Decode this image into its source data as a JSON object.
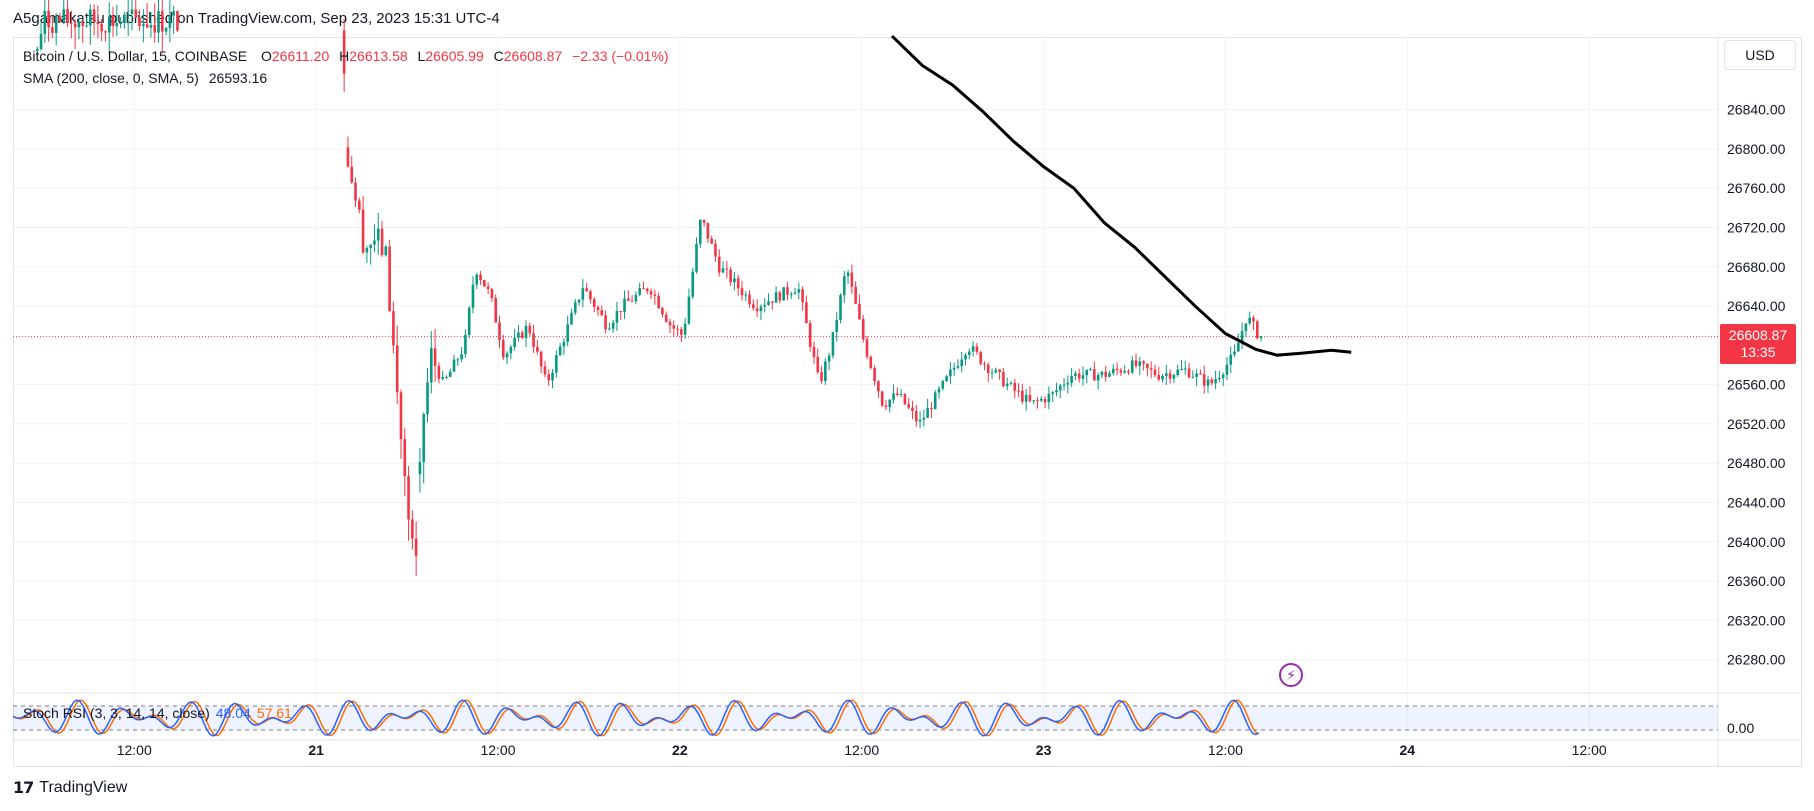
{
  "publisher_line": "A5gamakatsu published on TradingView.com, Sep 23, 2023 15:31 UTC-4",
  "legend": {
    "symbol": "Bitcoin / U.S. Dollar, 15, COINBASE",
    "open_label": "O",
    "open": "26611.20",
    "high_label": "H",
    "high": "26613.58",
    "low_label": "L",
    "low": "26605.99",
    "close_label": "C",
    "close": "26608.87",
    "change": "−2.33 (−0.01%)",
    "sma_label": "SMA (200, close, 0, SMA, 5)",
    "sma_value": "26593.16"
  },
  "currency": "USD",
  "last_price": {
    "price": "26608.87",
    "countdown": "13:35"
  },
  "rsi_legend": {
    "label": "Stoch RSI (3, 3, 14, 14, close)",
    "k": "48.04",
    "d": "57.61"
  },
  "brand": "TradingView",
  "colors": {
    "up": "#089981",
    "down": "#f23645",
    "sma": "#000000",
    "k": "#2962ff",
    "d": "#ff6d00",
    "grid": "#f0f3fa",
    "axis_text": "#131722"
  },
  "chart_data": {
    "type": "candlestick",
    "title": "Bitcoin / U.S. Dollar, 15, COINBASE",
    "y_ticks": [
      "26840.00",
      "26800.00",
      "26760.00",
      "26720.00",
      "26680.00",
      "26640.00",
      "26560.00",
      "26520.00",
      "26480.00",
      "26440.00",
      "26400.00",
      "26360.00",
      "26320.00",
      "26280.00"
    ],
    "x_ticks": [
      {
        "label": "12:00",
        "t": 12,
        "bold": false
      },
      {
        "label": "21",
        "t": 24,
        "bold": true
      },
      {
        "label": "12:00",
        "t": 36,
        "bold": false
      },
      {
        "label": "22",
        "t": 48,
        "bold": true
      },
      {
        "label": "12:00",
        "t": 60,
        "bold": false
      },
      {
        "label": "23",
        "t": 72,
        "bold": true
      },
      {
        "label": "12:00",
        "t": 84,
        "bold": false
      },
      {
        "label": "24",
        "t": 96,
        "bold": true
      },
      {
        "label": "12:00",
        "t": 108,
        "bold": false
      }
    ],
    "y_range": [
      26246,
      26914
    ],
    "x_range_hours": [
      4,
      116.5
    ],
    "last_price": 26608.87,
    "key_prices": [
      {
        "t": 5.6,
        "p": 26900
      },
      {
        "t": 6.0,
        "p": 26930
      },
      {
        "t": 12.2,
        "p": 26930
      },
      {
        "t": 15.0,
        "p": 26930
      },
      {
        "t": 25.8,
        "p": 26920
      },
      {
        "t": 26.0,
        "p": 26800
      },
      {
        "t": 26.5,
        "p": 26760
      },
      {
        "t": 27.2,
        "p": 26700
      },
      {
        "t": 28.0,
        "p": 26710
      },
      {
        "t": 28.6,
        "p": 26690
      },
      {
        "t": 29.3,
        "p": 26560
      },
      {
        "t": 30.2,
        "p": 26400
      },
      {
        "t": 30.6,
        "p": 26380
      },
      {
        "t": 31.0,
        "p": 26520
      },
      {
        "t": 31.6,
        "p": 26590
      },
      {
        "t": 32.4,
        "p": 26560
      },
      {
        "t": 33.8,
        "p": 26600
      },
      {
        "t": 34.5,
        "p": 26680
      },
      {
        "t": 35.5,
        "p": 26650
      },
      {
        "t": 36.4,
        "p": 26590
      },
      {
        "t": 38.0,
        "p": 26620
      },
      {
        "t": 39.2,
        "p": 26560
      },
      {
        "t": 41.6,
        "p": 26660
      },
      {
        "t": 43.2,
        "p": 26620
      },
      {
        "t": 44.2,
        "p": 26640
      },
      {
        "t": 46.0,
        "p": 26660
      },
      {
        "t": 47.4,
        "p": 26620
      },
      {
        "t": 48.2,
        "p": 26610
      },
      {
        "t": 49.4,
        "p": 26730
      },
      {
        "t": 50.6,
        "p": 26680
      },
      {
        "t": 53.0,
        "p": 26640
      },
      {
        "t": 55.8,
        "p": 26660
      },
      {
        "t": 57.2,
        "p": 26560
      },
      {
        "t": 58.0,
        "p": 26600
      },
      {
        "t": 59.0,
        "p": 26680
      },
      {
        "t": 60.2,
        "p": 26600
      },
      {
        "t": 61.4,
        "p": 26540
      },
      {
        "t": 62.4,
        "p": 26550
      },
      {
        "t": 63.8,
        "p": 26520
      },
      {
        "t": 65.4,
        "p": 26560
      },
      {
        "t": 67.0,
        "p": 26600
      },
      {
        "t": 68.2,
        "p": 26580
      },
      {
        "t": 69.6,
        "p": 26560
      },
      {
        "t": 71.2,
        "p": 26540
      },
      {
        "t": 72.6,
        "p": 26550
      },
      {
        "t": 73.8,
        "p": 26570
      },
      {
        "t": 76.0,
        "p": 26570
      },
      {
        "t": 78.0,
        "p": 26580
      },
      {
        "t": 79.6,
        "p": 26570
      },
      {
        "t": 81.4,
        "p": 26575
      },
      {
        "t": 83.0,
        "p": 26560
      },
      {
        "t": 84.6,
        "p": 26590
      },
      {
        "t": 85.4,
        "p": 26630
      },
      {
        "t": 86.2,
        "p": 26610
      },
      {
        "t": 86.4,
        "p": 26609
      }
    ],
    "sma_points": [
      {
        "t": 62,
        "p": 26915
      },
      {
        "t": 64,
        "p": 26885
      },
      {
        "t": 66,
        "p": 26865
      },
      {
        "t": 68,
        "p": 26838
      },
      {
        "t": 70,
        "p": 26808
      },
      {
        "t": 72,
        "p": 26782
      },
      {
        "t": 74,
        "p": 26760
      },
      {
        "t": 76,
        "p": 26725
      },
      {
        "t": 78,
        "p": 26700
      },
      {
        "t": 80,
        "p": 26670
      },
      {
        "t": 82,
        "p": 26640
      },
      {
        "t": 84,
        "p": 26612
      },
      {
        "t": 86,
        "p": 26596
      },
      {
        "t": 87.4,
        "p": 26590
      },
      {
        "t": 89,
        "p": 26592
      },
      {
        "t": 91,
        "p": 26595
      },
      {
        "t": 92.3,
        "p": 26593
      }
    ],
    "stoch_rsi": {
      "k": 48.04,
      "d": 57.61,
      "y_tick": "0.00",
      "levels": [
        80,
        20
      ]
    }
  }
}
